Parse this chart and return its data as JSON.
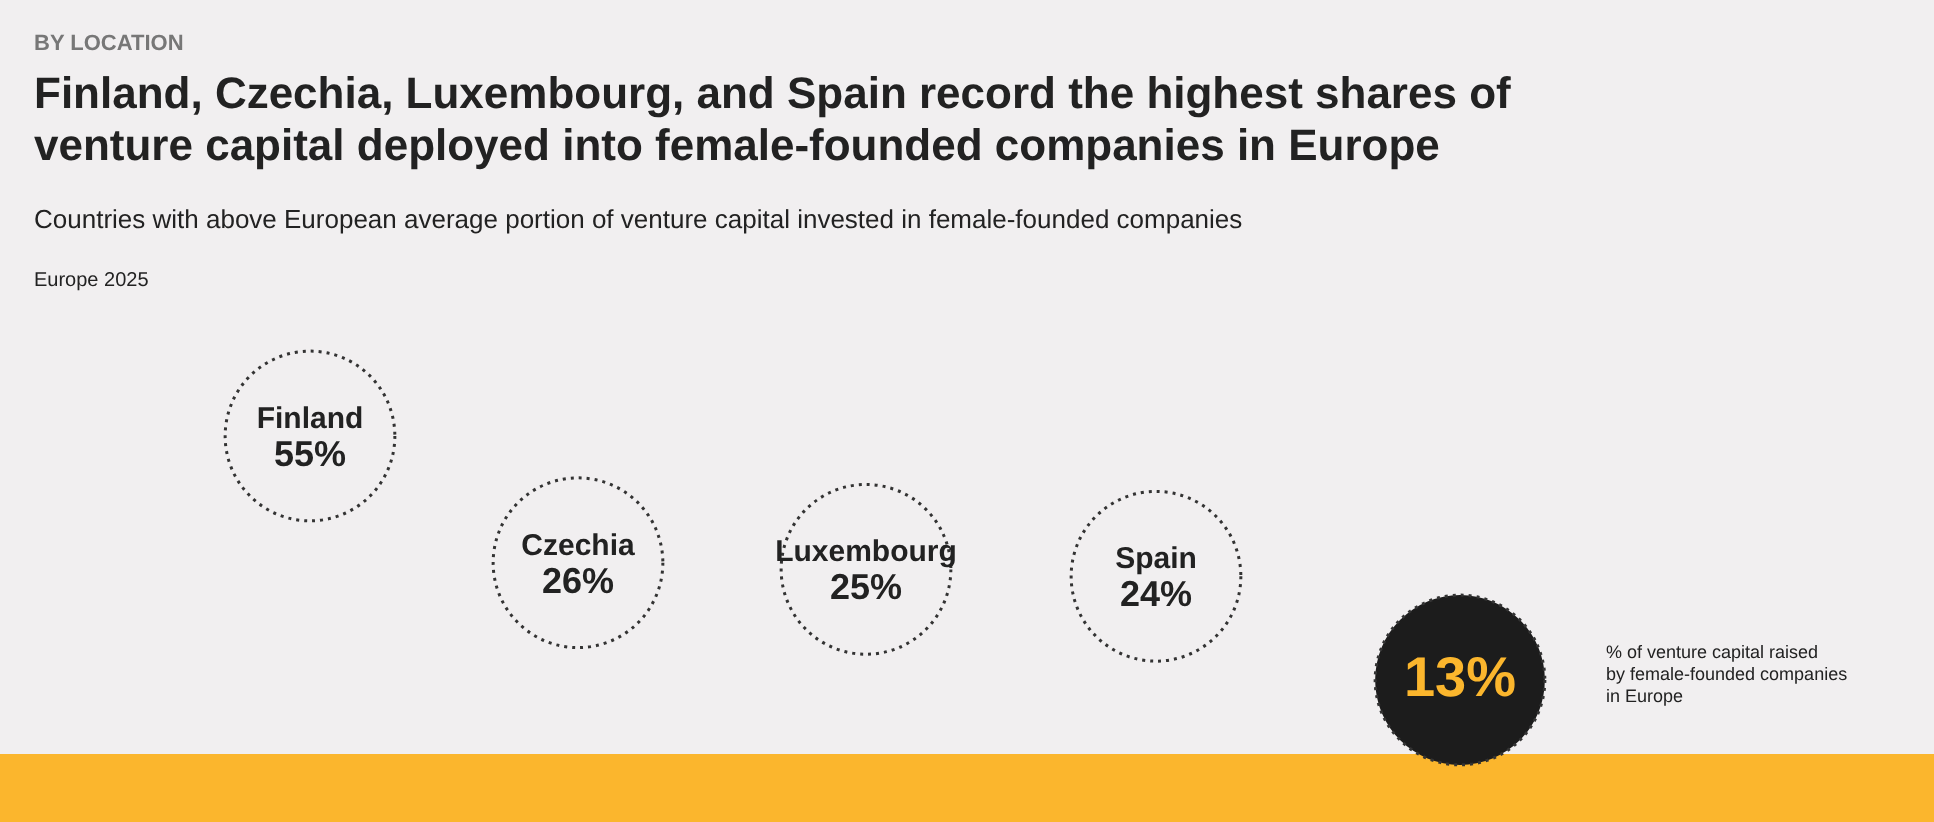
{
  "chart_data": {
    "type": "other",
    "title": "Finland, Czechia, Luxembourg, and Spain record the highest shares of venture capital deployed into female-founded companies in Europe",
    "subtitle": "Countries with above European average portion of venture capital invested in female-founded companies",
    "categories": [
      "Finland",
      "Czechia",
      "Luxembourg",
      "Spain",
      "% of venture capital raised by female-founded companies in Europe"
    ],
    "values": [
      55,
      26,
      25,
      24,
      13
    ],
    "value_labels": [
      "55%",
      "26%",
      "25%",
      "24%",
      "13%"
    ],
    "colors": [
      "#f1eff0",
      "#f1eff0",
      "#f1eff0",
      "#f1eff0",
      "#1c1c1c"
    ],
    "annotations": [
      "BY LOCATION",
      "Europe 2025"
    ]
  }
}
